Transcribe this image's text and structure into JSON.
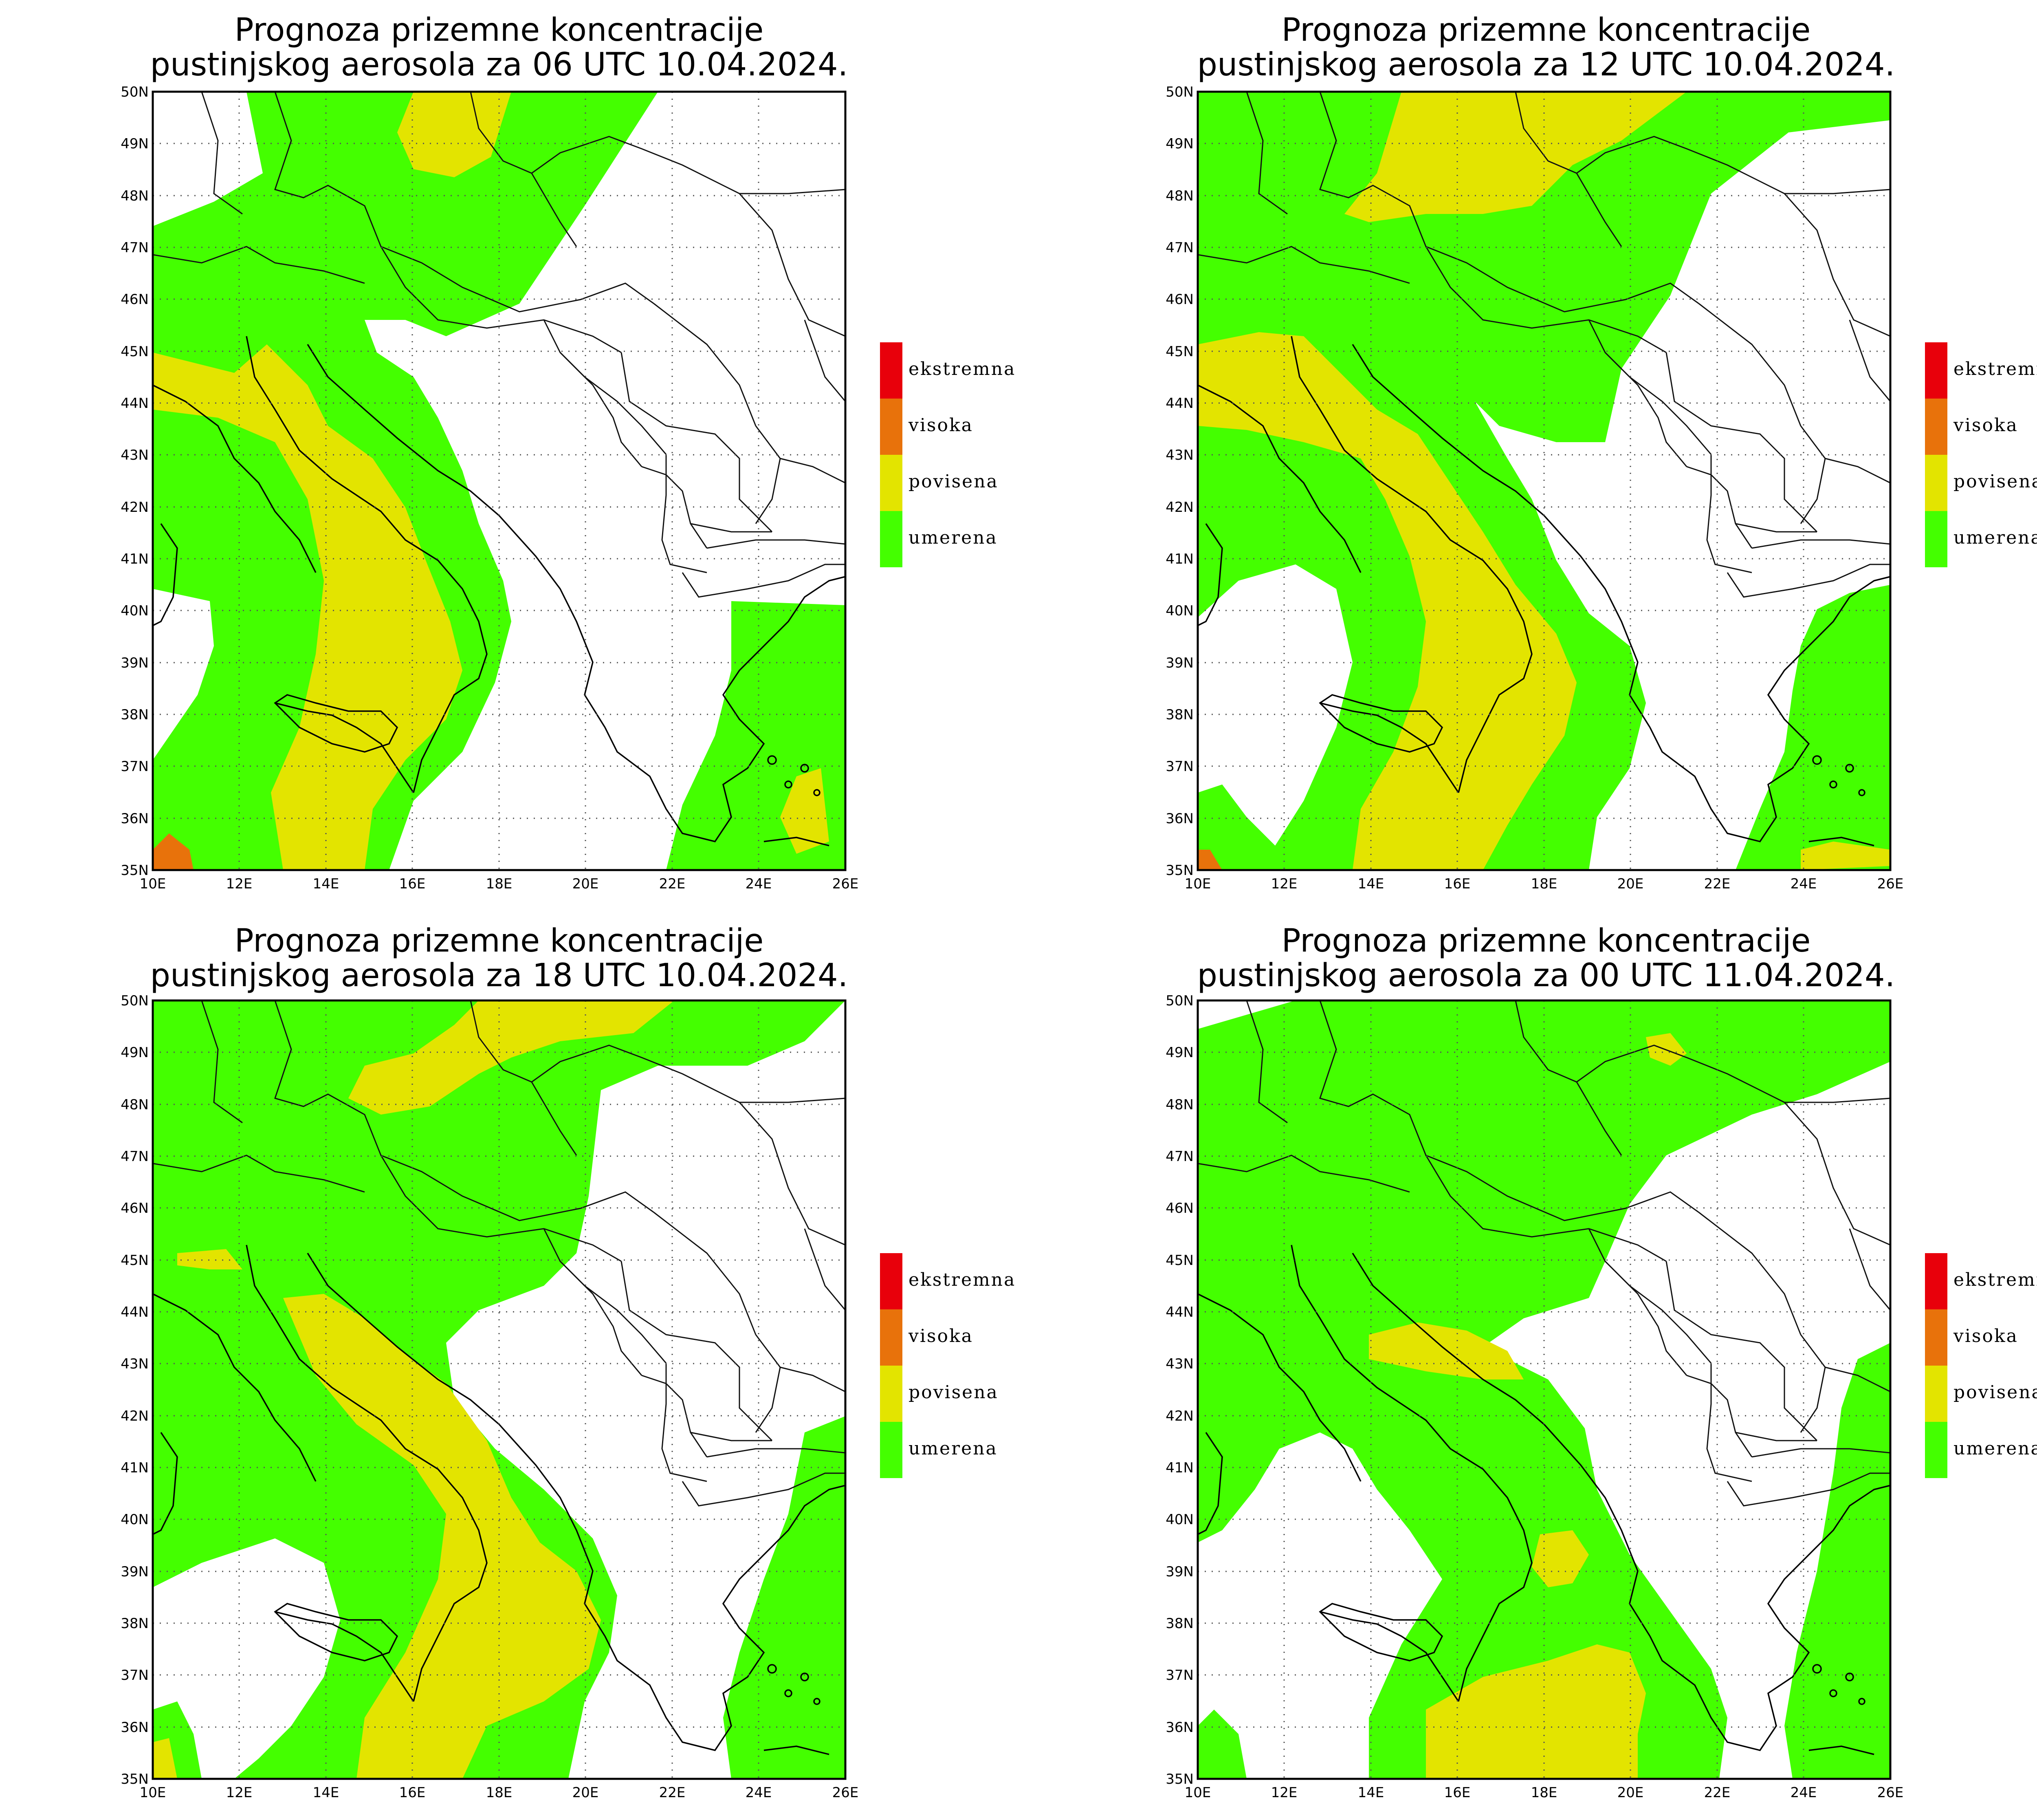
{
  "colors": {
    "ekstremna": "#e8000b",
    "visoka": "#e8720b",
    "povisena": "#e3e400",
    "umerena": "#44ff00"
  },
  "legend": {
    "items": [
      {
        "key": "ekstremna",
        "label": "ekstremna"
      },
      {
        "key": "visoka",
        "label": "visoka"
      },
      {
        "key": "povisena",
        "label": "povisena"
      },
      {
        "key": "umerena",
        "label": "umerena"
      }
    ]
  },
  "axes": {
    "lon_labels": [
      "10E",
      "12E",
      "14E",
      "16E",
      "18E",
      "20E",
      "22E",
      "24E",
      "26E"
    ],
    "lat_labels": [
      "35N",
      "36N",
      "37N",
      "38N",
      "39N",
      "40N",
      "41N",
      "42N",
      "43N",
      "44N",
      "45N",
      "46N",
      "47N",
      "48N",
      "49N",
      "50N"
    ],
    "lon_range": [
      10,
      26
    ],
    "lat_range": [
      35,
      50
    ]
  },
  "panels": [
    {
      "title_line1": "Prognoza prizemne koncentracije",
      "title_line2": "pustinjskog aerosola za 06 UTC 10.04.2024."
    },
    {
      "title_line1": "Prognoza prizemne koncentracije",
      "title_line2": "pustinjskog aerosola za 12 UTC 10.04.2024."
    },
    {
      "title_line1": "Prognoza prizemne koncentracije",
      "title_line2": "pustinjskog aerosola za 18 UTC 10.04.2024."
    },
    {
      "title_line1": "Prognoza prizemne koncentracije",
      "title_line2": "pustinjskog aerosola za 00 UTC 11.04.2024."
    }
  ]
}
